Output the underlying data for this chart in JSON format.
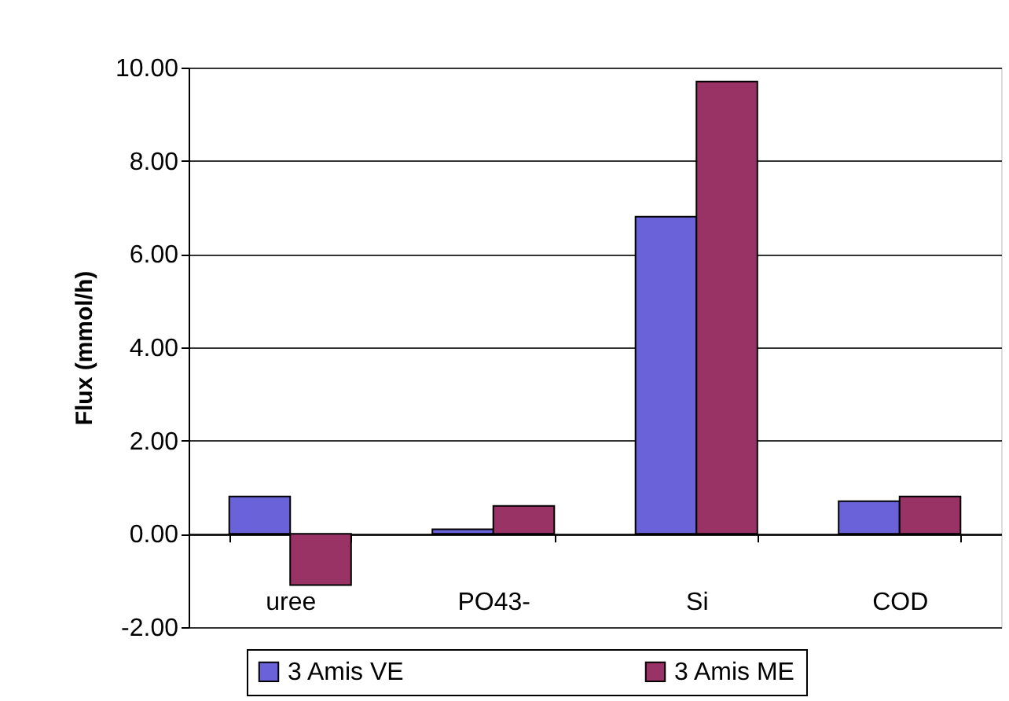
{
  "chart_data": {
    "type": "bar",
    "ylabel": "Flux (mmol/h)",
    "categories": [
      "uree",
      "PO43-",
      "Si",
      "COD"
    ],
    "series": [
      {
        "name": "3 Amis VE",
        "color": "#6a62d8",
        "values": [
          0.8,
          0.1,
          6.8,
          0.7
        ]
      },
      {
        "name": "3 Amis ME",
        "color": "#993366",
        "values": [
          -1.1,
          0.6,
          9.7,
          0.8
        ]
      }
    ],
    "ylim": [
      -2,
      10
    ],
    "yticks": [
      {
        "value": -2,
        "label": "-2.00"
      },
      {
        "value": 0,
        "label": "0.00"
      },
      {
        "value": 2,
        "label": "2.00"
      },
      {
        "value": 4,
        "label": "4.00"
      },
      {
        "value": 6,
        "label": "6.00"
      },
      {
        "value": 8,
        "label": "8.00"
      },
      {
        "value": 10,
        "label": "10.00"
      }
    ],
    "grid": "y",
    "legend": "bottom"
  }
}
